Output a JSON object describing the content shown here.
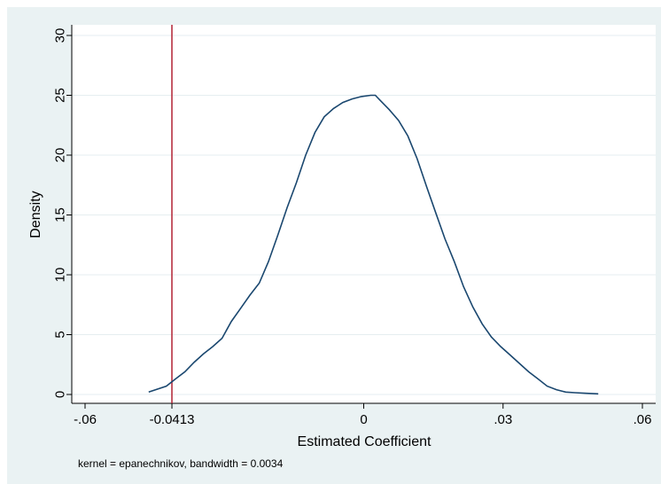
{
  "chart_data": {
    "type": "line",
    "title": "",
    "xlabel": "Estimated Coefficient",
    "ylabel": "Density",
    "xlim": [
      -0.06,
      0.06
    ],
    "ylim": [
      0,
      30
    ],
    "x_ticks": [
      {
        "value": -0.06,
        "label": "-.06"
      },
      {
        "value": -0.0413,
        "label": "-0.0413"
      },
      {
        "value": 0,
        "label": "0"
      },
      {
        "value": 0.03,
        "label": ".03"
      },
      {
        "value": 0.06,
        "label": ".06"
      }
    ],
    "y_ticks": [
      {
        "value": 0,
        "label": "0"
      },
      {
        "value": 5,
        "label": "5"
      },
      {
        "value": 10,
        "label": "10"
      },
      {
        "value": 15,
        "label": "15"
      },
      {
        "value": 20,
        "label": "20"
      },
      {
        "value": 25,
        "label": "25"
      },
      {
        "value": 30,
        "label": "30"
      }
    ],
    "grid": "horizontal",
    "note": "kernel = epanechnikov, bandwidth = 0.0034",
    "reference_line": {
      "x": -0.0413,
      "color": "#b22234"
    },
    "series": [
      {
        "color": "#1a476f",
        "x": [
          -0.0463,
          -0.0425,
          -0.0405,
          -0.0385,
          -0.0365,
          -0.0345,
          -0.0325,
          -0.0305,
          -0.0285,
          -0.0265,
          -0.0245,
          -0.0225,
          -0.0205,
          -0.0185,
          -0.0165,
          -0.0145,
          -0.0125,
          -0.0105,
          -0.0085,
          -0.0065,
          -0.0045,
          -0.0025,
          -0.0005,
          0.0015,
          0.0025,
          0.0035,
          0.0055,
          0.0075,
          0.0095,
          0.0115,
          0.0135,
          0.0155,
          0.0175,
          0.0195,
          0.0215,
          0.0235,
          0.0255,
          0.0275,
          0.0295,
          0.0315,
          0.0335,
          0.0355,
          0.0375,
          0.0395,
          0.0415,
          0.0435,
          0.0455,
          0.0475,
          0.0505
        ],
        "y": [
          0.2,
          0.7,
          1.3,
          1.9,
          2.7,
          3.4,
          4.0,
          4.7,
          6.1,
          7.2,
          8.3,
          9.3,
          11.1,
          13.3,
          15.6,
          17.7,
          20.0,
          21.9,
          23.2,
          23.9,
          24.4,
          24.7,
          24.9,
          25.0,
          25.0,
          24.6,
          23.8,
          22.9,
          21.6,
          19.7,
          17.4,
          15.2,
          13.0,
          11.1,
          9.0,
          7.3,
          5.9,
          4.8,
          4.0,
          3.3,
          2.6,
          1.9,
          1.3,
          0.7,
          0.4,
          0.2,
          0.15,
          0.1,
          0.05
        ]
      }
    ]
  }
}
